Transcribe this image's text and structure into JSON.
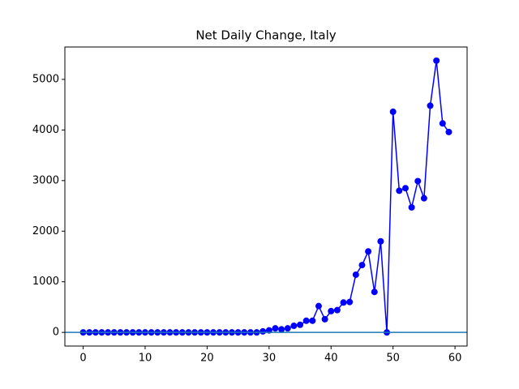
{
  "chart_data": {
    "type": "line",
    "title": "Net Daily Change, Italy",
    "x": [
      0,
      1,
      2,
      3,
      4,
      5,
      6,
      7,
      8,
      9,
      10,
      11,
      12,
      13,
      14,
      15,
      16,
      17,
      18,
      19,
      20,
      21,
      22,
      23,
      24,
      25,
      26,
      27,
      28,
      29,
      30,
      31,
      32,
      33,
      34,
      35,
      36,
      37,
      38,
      39,
      40,
      41,
      42,
      43,
      44,
      45,
      46,
      47,
      48,
      49,
      50,
      51,
      52,
      53,
      54,
      55,
      56,
      57,
      58,
      59
    ],
    "series": [
      {
        "name": "Italy",
        "color": "blue",
        "values": [
          0,
          0,
          0,
          0,
          0,
          0,
          0,
          0,
          0,
          0,
          0,
          0,
          0,
          0,
          0,
          0,
          0,
          0,
          0,
          0,
          0,
          0,
          0,
          0,
          0,
          0,
          0,
          0,
          0,
          20,
          40,
          80,
          60,
          80,
          130,
          150,
          230,
          230,
          520,
          260,
          420,
          440,
          590,
          600,
          1140,
          1330,
          1600,
          800,
          1800,
          0,
          4360,
          2800,
          2850,
          2470,
          2990,
          2650,
          4480,
          5370,
          4130,
          3960
        ]
      }
    ],
    "hline": {
      "value": 0,
      "color": "#1f77b4"
    },
    "xlim": [
      -2.95,
      61.95
    ],
    "xticks": [
      0,
      10,
      20,
      30,
      40,
      50,
      60
    ],
    "ylim": [
      -270,
      5640
    ],
    "yticks": [
      0,
      1000,
      2000,
      3000,
      4000,
      5000
    ]
  }
}
